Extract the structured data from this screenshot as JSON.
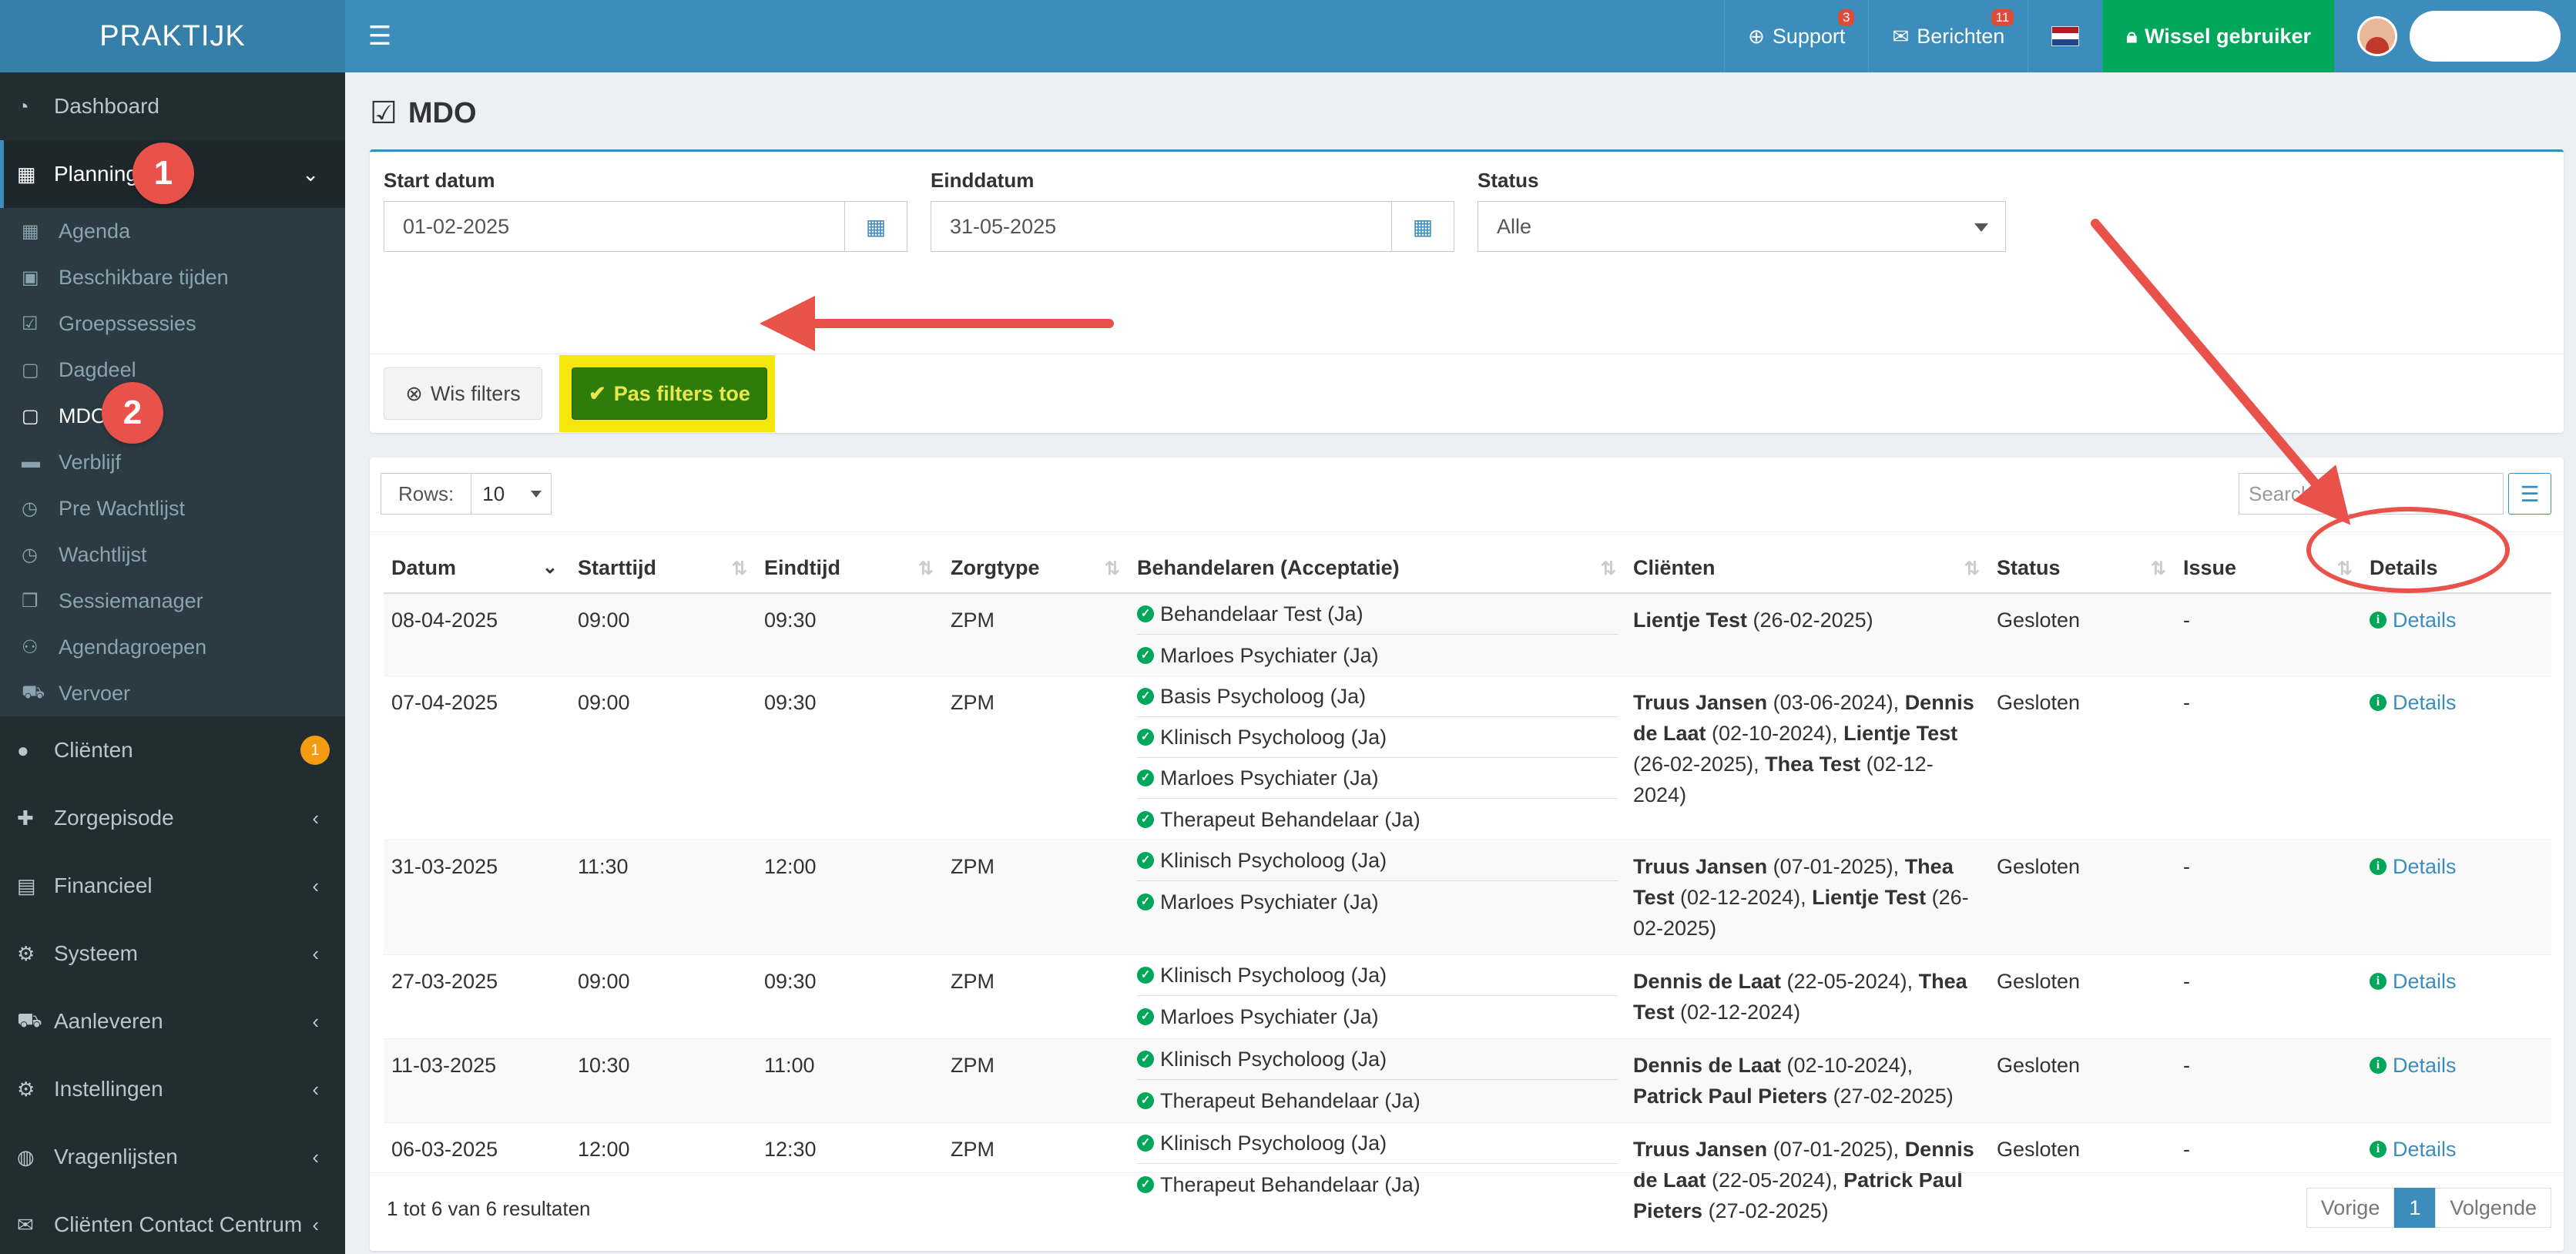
{
  "topbar": {
    "logo": "PRAKTIJK",
    "support_label": "Support",
    "support_badge": "3",
    "berichten_label": "Berichten",
    "berichten_badge": "11",
    "switch_user_label": "Wissel gebruiker"
  },
  "sidebar": {
    "items": [
      {
        "label": "Dashboard",
        "icon": "dashboard-icon"
      },
      {
        "label": "Planning",
        "icon": "calendar-icon"
      },
      {
        "label": "Cliënten",
        "icon": "user-icon",
        "badge": "1"
      },
      {
        "label": "Zorgepisode",
        "icon": "medkit-icon"
      },
      {
        "label": "Financieel",
        "icon": "book-icon"
      },
      {
        "label": "Systeem",
        "icon": "cogs-icon"
      },
      {
        "label": "Aanleveren",
        "icon": "truck-icon"
      },
      {
        "label": "Instellingen",
        "icon": "gear-icon"
      },
      {
        "label": "Vragenlijsten",
        "icon": "globe-icon"
      },
      {
        "label": "Cliënten Contact Centrum",
        "icon": "envelope-icon"
      }
    ],
    "sub_items": [
      {
        "label": "Agenda"
      },
      {
        "label": "Beschikbare tijden"
      },
      {
        "label": "Groepssessies"
      },
      {
        "label": "Dagdeel"
      },
      {
        "label": "MDO"
      },
      {
        "label": "Verblijf"
      },
      {
        "label": "Pre Wachtlijst"
      },
      {
        "label": "Wachtlijst"
      },
      {
        "label": "Sessiemanager"
      },
      {
        "label": "Agendagroepen"
      },
      {
        "label": "Vervoer"
      }
    ]
  },
  "annotations": {
    "step1": "1",
    "step2": "2"
  },
  "page": {
    "title": "MDO"
  },
  "filters": {
    "start_label": "Start datum",
    "start_value": "01-02-2025",
    "end_label": "Einddatum",
    "end_value": "31-05-2025",
    "status_label": "Status",
    "status_value": "Alle",
    "clear_label": "Wis filters",
    "apply_label": "Pas filters toe"
  },
  "table": {
    "rows_label": "Rows:",
    "rows_value": "10",
    "search_placeholder": "Search...",
    "headers": [
      "Datum",
      "Starttijd",
      "Eindtijd",
      "Zorgtype",
      "Behandelaren (Acceptatie)",
      "Cliënten",
      "Status",
      "Issue",
      "Details"
    ],
    "rows": [
      {
        "datum": "08-04-2025",
        "start": "09:00",
        "eind": "09:30",
        "zorgtype": "ZPM",
        "behandelaren": [
          "Behandelaar Test (Ja)",
          "Marloes Psychiater (Ja)"
        ],
        "clienten": [
          {
            "name": "Lientje Test",
            "date": " (26-02-2025)"
          }
        ],
        "status": "Gesloten",
        "issue": "-",
        "details": "Details"
      },
      {
        "datum": "07-04-2025",
        "start": "09:00",
        "eind": "09:30",
        "zorgtype": "ZPM",
        "behandelaren": [
          "Basis Psycholoog (Ja)",
          "Klinisch Psycholoog (Ja)",
          "Marloes Psychiater (Ja)",
          "Therapeut Behandelaar (Ja)"
        ],
        "clienten": [
          {
            "name": "Truus Jansen",
            "date": " (03-06-2024), "
          },
          {
            "name": "Dennis de Laat",
            "date": " (02-10-2024), "
          },
          {
            "name": "Lientje Test",
            "date": " (26-02-2025), "
          },
          {
            "name": "Thea Test",
            "date": " (02-12-2024)"
          }
        ],
        "status": "Gesloten",
        "issue": "-",
        "details": "Details"
      },
      {
        "datum": "31-03-2025",
        "start": "11:30",
        "eind": "12:00",
        "zorgtype": "ZPM",
        "behandelaren": [
          "Klinisch Psycholoog (Ja)",
          "Marloes Psychiater (Ja)"
        ],
        "clienten": [
          {
            "name": "Truus Jansen",
            "date": " (07-01-2025), "
          },
          {
            "name": "Thea Test",
            "date": " (02-12-2024), "
          },
          {
            "name": "Lientje Test",
            "date": " (26-02-2025)"
          }
        ],
        "status": "Gesloten",
        "issue": "-",
        "details": "Details"
      },
      {
        "datum": "27-03-2025",
        "start": "09:00",
        "eind": "09:30",
        "zorgtype": "ZPM",
        "behandelaren": [
          "Klinisch Psycholoog (Ja)",
          "Marloes Psychiater (Ja)"
        ],
        "clienten": [
          {
            "name": "Dennis de Laat",
            "date": " (22-05-2024), "
          },
          {
            "name": "Thea Test",
            "date": " (02-12-2024)"
          }
        ],
        "status": "Gesloten",
        "issue": "-",
        "details": "Details"
      },
      {
        "datum": "11-03-2025",
        "start": "10:30",
        "eind": "11:00",
        "zorgtype": "ZPM",
        "behandelaren": [
          "Klinisch Psycholoog (Ja)",
          "Therapeut Behandelaar (Ja)"
        ],
        "clienten": [
          {
            "name": "Dennis de Laat",
            "date": " (02-10-2024), "
          },
          {
            "name": "Patrick Paul Pieters",
            "date": " (27-02-2025)"
          }
        ],
        "status": "Gesloten",
        "issue": "-",
        "details": "Details"
      },
      {
        "datum": "06-03-2025",
        "start": "12:00",
        "eind": "12:30",
        "zorgtype": "ZPM",
        "behandelaren": [
          "Klinisch Psycholoog (Ja)",
          "Therapeut Behandelaar (Ja)"
        ],
        "clienten": [
          {
            "name": "Truus Jansen",
            "date": " (07-01-2025), "
          },
          {
            "name": "Dennis de Laat",
            "date": " (22-05-2024), "
          },
          {
            "name": "Patrick Paul Pieters",
            "date": " (27-02-2025)"
          }
        ],
        "status": "Gesloten",
        "issue": "-",
        "details": "Details"
      }
    ],
    "info": "1 tot 6 van 6 resultaten",
    "pager": {
      "prev": "Vorige",
      "current": "1",
      "next": "Volgende"
    }
  },
  "colors": {
    "primary": "#3c8dbc",
    "sidebar": "#222d32",
    "success": "#00a65a",
    "annotation": "#e8524a",
    "highlight": "#f5e60d"
  }
}
